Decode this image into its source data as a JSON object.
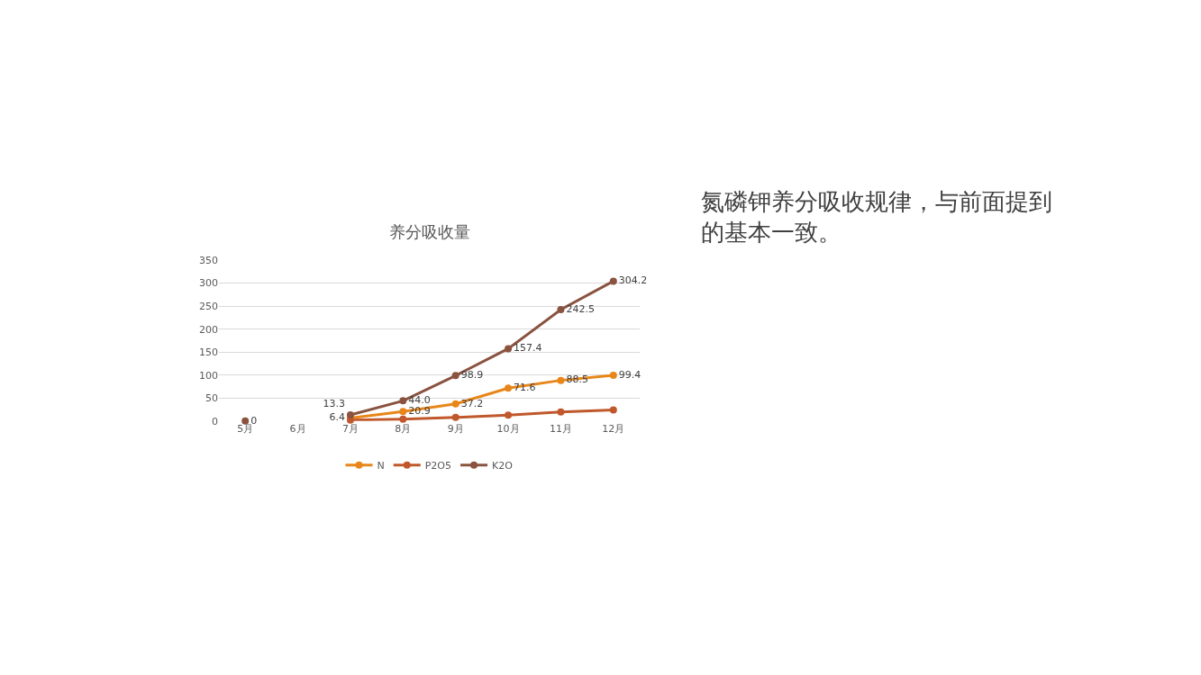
{
  "chart_data": {
    "type": "line",
    "title": "养分吸收量",
    "categories": [
      "5月",
      "6月",
      "7月",
      "8月",
      "9月",
      "10月",
      "11月",
      "12月"
    ],
    "series": [
      {
        "name": "N",
        "color": "#e8861a",
        "values": [
          null,
          null,
          6.4,
          20.9,
          37.2,
          71.6,
          88.5,
          99.4
        ],
        "value_labels": [
          null,
          null,
          "6.4",
          "20.9",
          "37.2",
          "71.6",
          "88.5",
          "99.4"
        ]
      },
      {
        "name": "P2O5",
        "color": "#c0582b",
        "values": [
          null,
          null,
          2,
          4,
          8,
          13,
          20,
          24
        ]
      },
      {
        "name": "K2O",
        "color": "#8a5340",
        "values": [
          0,
          null,
          13.3,
          44.0,
          98.9,
          157.4,
          242.5,
          304.2
        ],
        "value_labels": [
          "0",
          null,
          "13.3",
          "44.0",
          "98.9",
          "157.4",
          "242.5",
          "304.2"
        ]
      }
    ],
    "ylim": [
      0,
      350
    ],
    "yticks": [
      0,
      50,
      100,
      150,
      200,
      250,
      300,
      350
    ],
    "grid": "y",
    "legend": "bottom",
    "marker": "circle",
    "line_style": "solid",
    "annotations": [
      "氮磷钾养分吸收规律，与前面提到的基本一致。"
    ]
  }
}
